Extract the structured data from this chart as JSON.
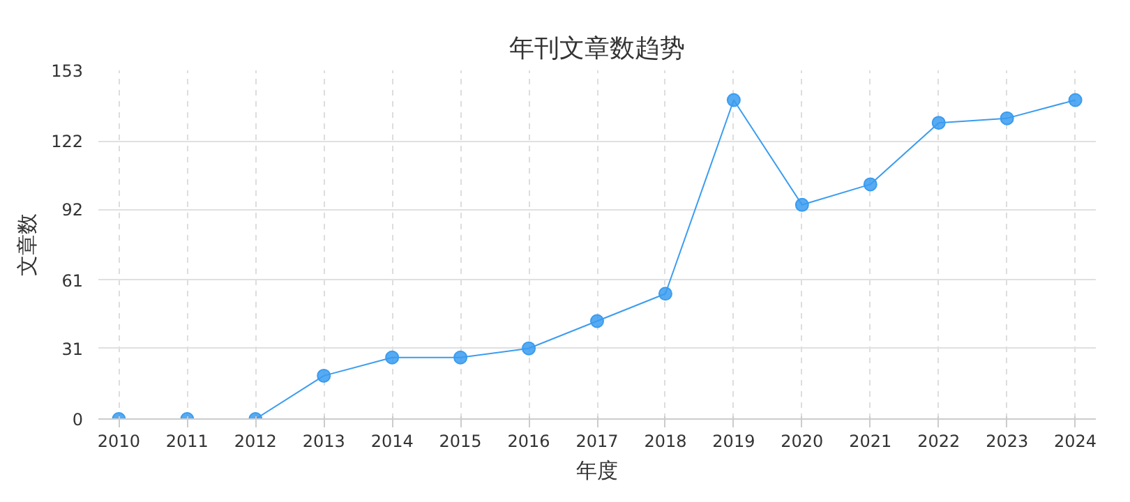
{
  "chart_data": {
    "type": "line",
    "title": "年刊文章数趋势",
    "xlabel": "年度",
    "ylabel": "文章数",
    "categories": [
      "2010",
      "2011",
      "2012",
      "2013",
      "2014",
      "2015",
      "2016",
      "2017",
      "2018",
      "2019",
      "2020",
      "2021",
      "2022",
      "2023",
      "2024"
    ],
    "series": [
      {
        "color": "#3a9cf0",
        "values": [
          0,
          0,
          0,
          19,
          27,
          27,
          31,
          43,
          55,
          140,
          94,
          103,
          130,
          132,
          140
        ]
      }
    ],
    "ylim": [
      0,
      153
    ],
    "yticks": [
      0,
      31,
      61,
      92,
      122,
      153
    ],
    "grid": true,
    "marker": "circle",
    "line_style": "solid"
  }
}
